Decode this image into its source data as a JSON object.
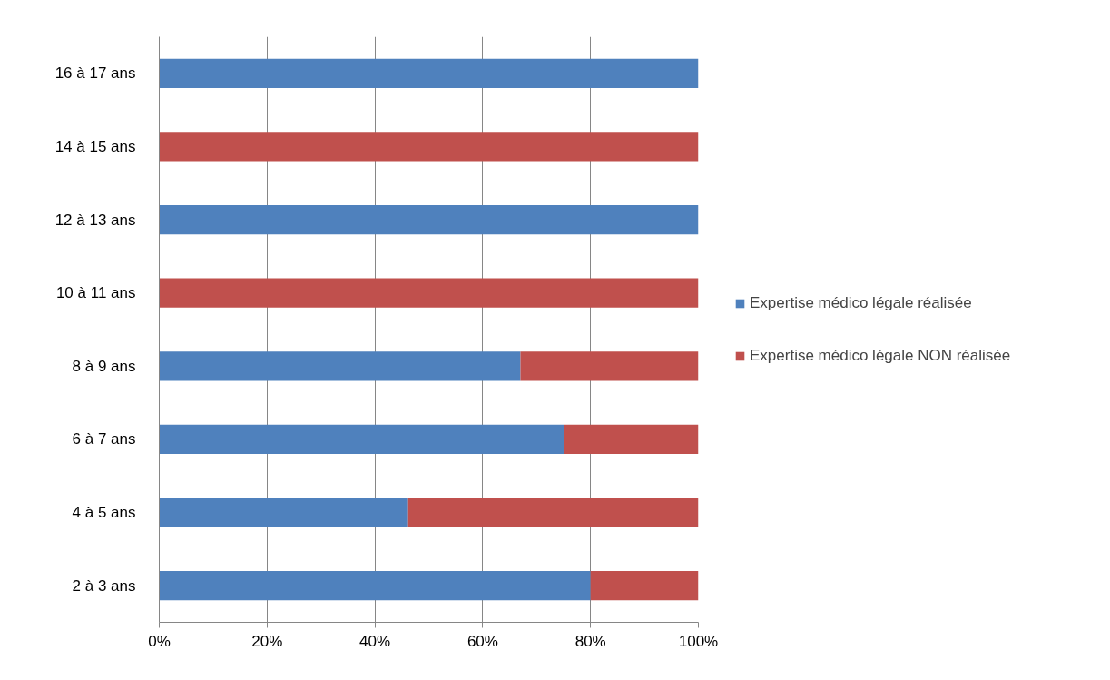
{
  "chart_data": {
    "type": "bar",
    "orientation": "horizontal",
    "stacked": true,
    "categories": [
      "16 à 17 ans",
      "14 à 15 ans",
      "12 à 13 ans",
      "10 à 11 ans",
      "8 à 9 ans",
      "6 à 7 ans",
      "4 à 5 ans",
      "2 à 3 ans"
    ],
    "series": [
      {
        "name": "Expertise médico légale réalisée",
        "color": "#4f81bd",
        "values": [
          100,
          0,
          100,
          0,
          67,
          75,
          46,
          80
        ]
      },
      {
        "name": "Expertise médico légale NON réalisée",
        "color": "#c0504d",
        "values": [
          0,
          100,
          0,
          100,
          33,
          25,
          54,
          20
        ]
      }
    ],
    "xlim": [
      0,
      100
    ],
    "xticks": [
      {
        "value": 0,
        "label": "0%"
      },
      {
        "value": 20,
        "label": "20%"
      },
      {
        "value": 40,
        "label": "40%"
      },
      {
        "value": 60,
        "label": "60%"
      },
      {
        "value": 80,
        "label": "80%"
      },
      {
        "value": 100,
        "label": "100%"
      }
    ],
    "grid": "x",
    "legend": "right"
  }
}
